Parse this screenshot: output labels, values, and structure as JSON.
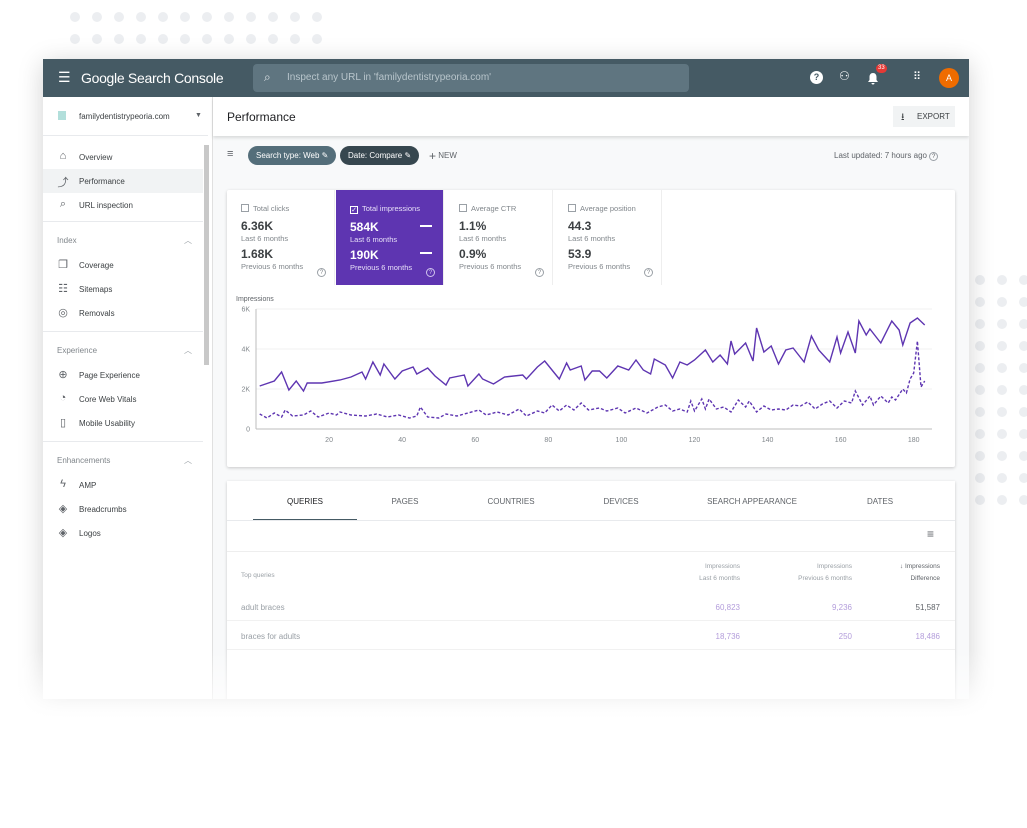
{
  "header": {
    "app_title": "Google Search Console",
    "search_placeholder": "Inspect any URL in 'familydentistrypeoria.com'",
    "notification_count": "33",
    "avatar_letter": "A"
  },
  "sidebar": {
    "property": "familydentistrypeoria.com",
    "top_items": [
      {
        "label": "Overview",
        "icon": "home-icon"
      },
      {
        "label": "Performance",
        "icon": "trending-up-icon",
        "active": true
      },
      {
        "label": "URL inspection",
        "icon": "search-icon"
      }
    ],
    "sections": [
      {
        "title": "Index",
        "items": [
          {
            "label": "Coverage",
            "icon": "copy-icon"
          },
          {
            "label": "Sitemaps",
            "icon": "sitemap-icon"
          },
          {
            "label": "Removals",
            "icon": "eye-off-icon"
          }
        ]
      },
      {
        "title": "Experience",
        "items": [
          {
            "label": "Page Experience",
            "icon": "plus-circle-icon"
          },
          {
            "label": "Core Web Vitals",
            "icon": "gauge-icon"
          },
          {
            "label": "Mobile Usability",
            "icon": "phone-icon"
          }
        ]
      },
      {
        "title": "Enhancements",
        "items": [
          {
            "label": "AMP",
            "icon": "bolt-icon"
          },
          {
            "label": "Breadcrumbs",
            "icon": "layers-icon"
          },
          {
            "label": "Logos",
            "icon": "layers-icon"
          }
        ]
      }
    ]
  },
  "page": {
    "title": "Performance",
    "export_label": "EXPORT",
    "filters": [
      "Search type: Web",
      "Date: Compare"
    ],
    "new_label": "NEW",
    "last_updated": "Last updated: 7 hours ago"
  },
  "metrics": [
    {
      "label": "Total clicks",
      "value": "6.36K",
      "period": "Last 6 months",
      "prev_value": "1.68K",
      "prev_period": "Previous 6 months",
      "selected": false
    },
    {
      "label": "Total impressions",
      "value": "584K",
      "period": "Last 6 months",
      "prev_value": "190K",
      "prev_period": "Previous 6 months",
      "selected": true
    },
    {
      "label": "Average CTR",
      "value": "1.1%",
      "period": "Last 6 months",
      "prev_value": "0.9%",
      "prev_period": "Previous 6 months",
      "selected": false
    },
    {
      "label": "Average position",
      "value": "44.3",
      "period": "Last 6 months",
      "prev_value": "53.9",
      "prev_period": "Previous 6 months",
      "selected": false
    }
  ],
  "chart_data": {
    "type": "line",
    "ylabel": "Impressions",
    "ylim": [
      0,
      6000
    ],
    "xlim": [
      0,
      185
    ],
    "yticks": [
      "0",
      "2K",
      "4K",
      "6K"
    ],
    "xticks": [
      20,
      40,
      60,
      80,
      100,
      120,
      140,
      160,
      180
    ],
    "color": "#5e35b1",
    "grid": true,
    "series": [
      {
        "style": "solid",
        "x": [
          1,
          5,
          7,
          9,
          11,
          13,
          14,
          18,
          23,
          26,
          29,
          30,
          32,
          34,
          35,
          38,
          40,
          43,
          44,
          47,
          49,
          52,
          53,
          57,
          58,
          61,
          62,
          65,
          68,
          73,
          74,
          77,
          79,
          83,
          85,
          86,
          89,
          90,
          92,
          94,
          96,
          99,
          102,
          104,
          106,
          108,
          109,
          112,
          114,
          116,
          118,
          120,
          123,
          125,
          127,
          129,
          130,
          131,
          134,
          136,
          137,
          139,
          141,
          143,
          145,
          147,
          150,
          152,
          154,
          157,
          159,
          160,
          162,
          164,
          165,
          167,
          168,
          171,
          174,
          176,
          177,
          179,
          181,
          183
        ],
        "y": [
          2150,
          2400,
          2850,
          1950,
          2400,
          1900,
          2300,
          2300,
          2450,
          2600,
          2850,
          2500,
          3350,
          2700,
          3250,
          2500,
          2900,
          3100,
          2750,
          3050,
          2650,
          2200,
          2550,
          2700,
          2150,
          2750,
          2500,
          2250,
          2600,
          2700,
          2500,
          3100,
          3400,
          2500,
          3300,
          2950,
          3150,
          2450,
          2900,
          2900,
          2550,
          3150,
          2950,
          3450,
          2950,
          2750,
          3500,
          3200,
          2550,
          3350,
          3200,
          3450,
          3950,
          3350,
          3700,
          3250,
          4400,
          3750,
          4300,
          3400,
          5050,
          3850,
          4150,
          3250,
          3950,
          4050,
          3350,
          4650,
          3950,
          3350,
          4600,
          3800,
          4850,
          3800,
          5400,
          4700,
          5000,
          4300,
          5400,
          4950,
          4200,
          5300,
          5550,
          5200
        ]
      },
      {
        "style": "dashed",
        "x": [
          1,
          3,
          5,
          7,
          8,
          10,
          13,
          15,
          17,
          20,
          22,
          23,
          26,
          30,
          33,
          36,
          39,
          42,
          44,
          45,
          47,
          50,
          52,
          55,
          58,
          61,
          63,
          66,
          69,
          72,
          74,
          77,
          79,
          81,
          83,
          85,
          87,
          89,
          91,
          94,
          96,
          99,
          101,
          104,
          107,
          110,
          112,
          114,
          116,
          118,
          119,
          120,
          122,
          123,
          124,
          126,
          128,
          130,
          132,
          134,
          135,
          137,
          139,
          141,
          143,
          145,
          147,
          149,
          151,
          153,
          155,
          157,
          159,
          161,
          163,
          164,
          166,
          168,
          169,
          171,
          173,
          174,
          175,
          177,
          178,
          179,
          180,
          181,
          182,
          183
        ],
        "y": [
          750,
          550,
          800,
          600,
          950,
          650,
          700,
          900,
          600,
          800,
          700,
          850,
          700,
          650,
          750,
          600,
          700,
          550,
          650,
          1100,
          600,
          550,
          750,
          650,
          800,
          950,
          700,
          850,
          700,
          1000,
          650,
          900,
          800,
          1200,
          900,
          1200,
          950,
          1300,
          950,
          1050,
          900,
          1050,
          800,
          1050,
          800,
          1100,
          1200,
          900,
          1000,
          850,
          1400,
          900,
          1500,
          1000,
          1500,
          1000,
          1100,
          850,
          1450,
          1100,
          1400,
          850,
          1150,
          950,
          1000,
          950,
          1200,
          1150,
          1350,
          1000,
          1250,
          1400,
          1050,
          1400,
          1300,
          1900,
          1200,
          1650,
          1200,
          1650,
          1300,
          1600,
          1450,
          2000,
          1800,
          2500,
          2800,
          4400,
          2100,
          2400
        ]
      }
    ]
  },
  "table": {
    "tabs": [
      "QUERIES",
      "PAGES",
      "COUNTRIES",
      "DEVICES",
      "SEARCH APPEARANCE",
      "DATES"
    ],
    "columns": [
      "Top queries",
      "Impressions",
      "Last 6 months",
      "Impressions",
      "Previous 6 months",
      "Impressions",
      "Difference"
    ],
    "rows": [
      {
        "query": "adult braces",
        "last": "60,823",
        "prev": "9,236",
        "diff": "51,587"
      },
      {
        "query": "braces for adults",
        "last": "18,736",
        "prev": "250",
        "diff": "18,486"
      }
    ]
  }
}
